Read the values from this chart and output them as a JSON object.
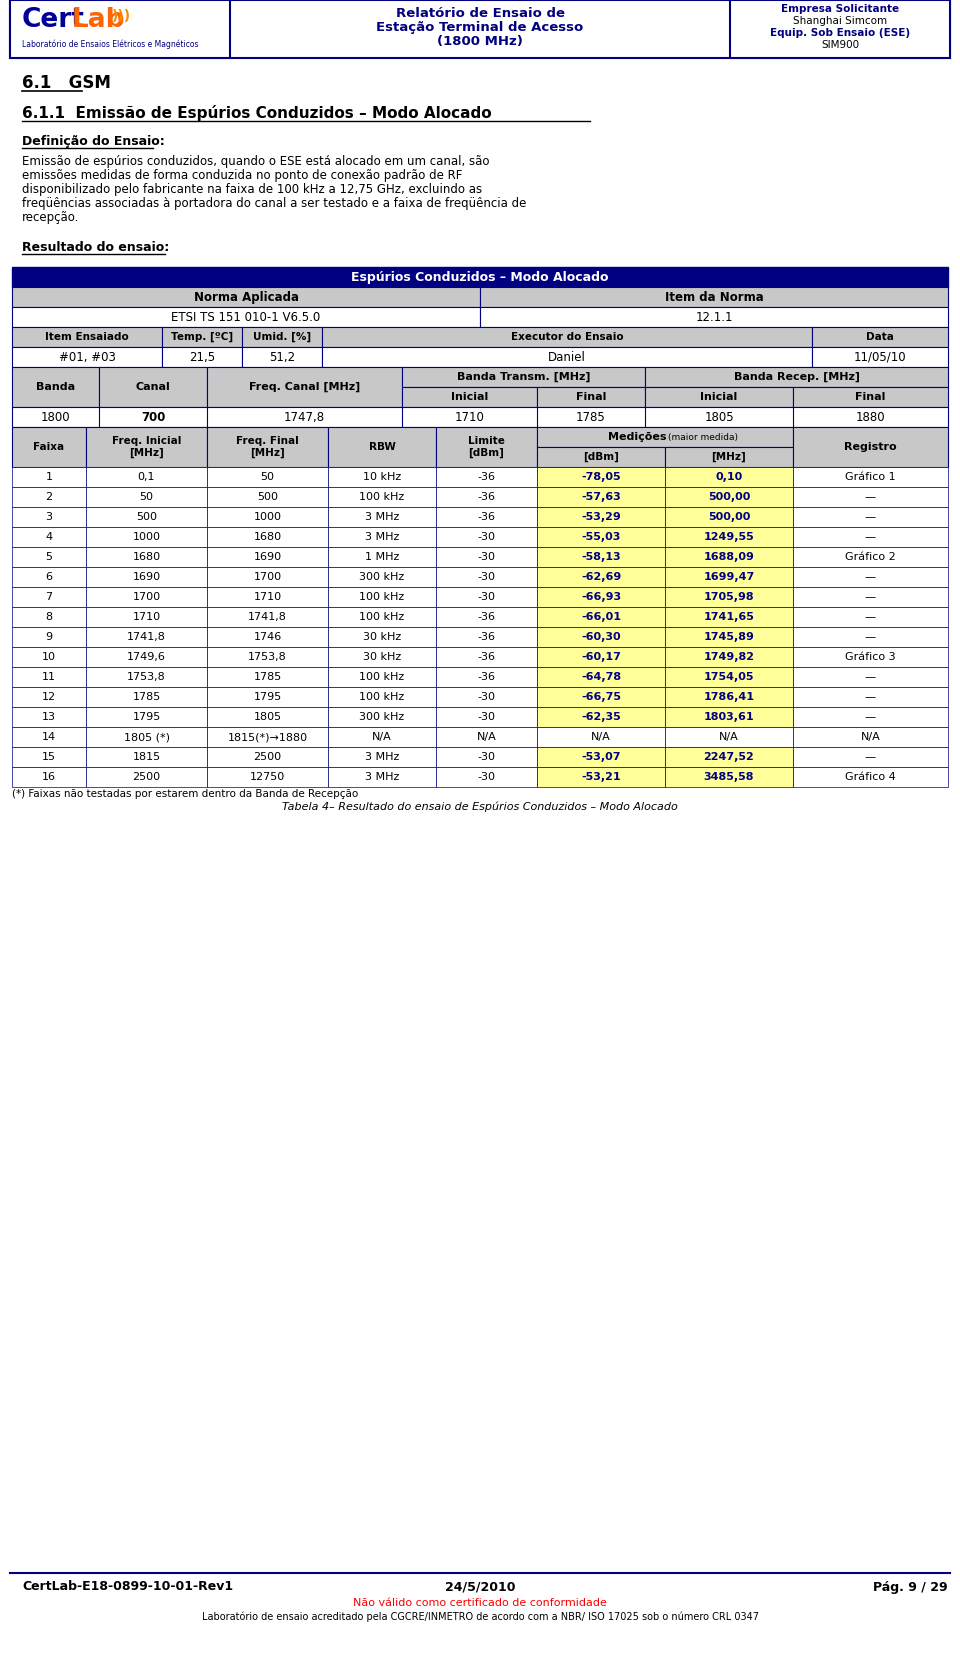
{
  "page_title_line1": "Relatório de Ensaio de",
  "page_title_line2": "Estação Terminal de Acesso",
  "page_title_line3": "(1800 MHz)",
  "company_label": "Empresa Solicitante",
  "company_name": "Shanghai Simcom",
  "equip_label": "Equip. Sob Ensaio (ESE)",
  "equip_name": "SIM900",
  "certlab_subtitle": "Laboratório de Ensaios Elétricos e Magnéticos",
  "section_title": "6.1   GSM",
  "subsection_title": "6.1.1  Emissão de Espúrios Conduzidos – Modo Alocado",
  "def_label": "Definição do Ensaio:",
  "def_lines": [
    "Emissão de espúrios conduzidos, quando o ESE está alocado em um canal, são",
    "emissões medidas de forma conduzida no ponto de conexão padrão de RF",
    "disponibilizado pelo fabricante na faixa de 100 kHz a 12,75 GHz, excluindo as",
    "freqüências associadas à portadora do canal a ser testado e a faixa de freqüência de",
    "recepção."
  ],
  "result_label": "Resultado do ensaio:",
  "table_title": "Espúrios Conduzidos – Modo Alocado",
  "norma_aplicada": "Norma Aplicada",
  "item_norma": "Item da Norma",
  "norma_value": "ETSI TS 151 010-1 V6.5.0",
  "item_norma_value": "12.1.1",
  "item_ensaiado_label": "Item Ensaiado",
  "temp_label": "Temp. [ºC]",
  "umid_label": "Umid. [%]",
  "executor_label": "Executor do Ensaio",
  "data_label": "Data",
  "item_ensaiado_value": "#01, #03",
  "temp_value": "21,5",
  "umid_value": "51,2",
  "executor_value": "Daniel",
  "data_value": "11/05/10",
  "banda_label": "Banda",
  "canal_label": "Canal",
  "freq_canal_label": "Freq. Canal [MHz]",
  "banda_transm_label": "Banda Transm. [MHz]",
  "banda_recep_label": "Banda Recep. [MHz]",
  "inicial_label": "Inicial",
  "final_label": "Final",
  "banda_value": "1800",
  "canal_value": "700",
  "freq_canal_value": "1747,8",
  "bt_inicial": "1710",
  "bt_final": "1785",
  "br_inicial": "1805",
  "br_final": "1880",
  "faixa_label": "Faixa",
  "freq_ini_label": "Freq. Inicial\n[MHz]",
  "freq_fin_label": "Freq. Final\n[MHz]",
  "rbw_label": "RBW",
  "limite_label": "Limite\n[dBm]",
  "medicoes_label": "Medições",
  "medicoes_sub": "(maior medida)",
  "dbm_label": "[dBm]",
  "mhz_label": "[MHz]",
  "registro_label": "Registro",
  "rows": [
    [
      "1",
      "0,1",
      "50",
      "10 kHz",
      "-36",
      "-78,05",
      "0,10",
      "Gráfico 1"
    ],
    [
      "2",
      "50",
      "500",
      "100 kHz",
      "-36",
      "-57,63",
      "500,00",
      "—"
    ],
    [
      "3",
      "500",
      "1000",
      "3 MHz",
      "-36",
      "-53,29",
      "500,00",
      "—"
    ],
    [
      "4",
      "1000",
      "1680",
      "3 MHz",
      "-30",
      "-55,03",
      "1249,55",
      "—"
    ],
    [
      "5",
      "1680",
      "1690",
      "1 MHz",
      "-30",
      "-58,13",
      "1688,09",
      "Gráfico 2"
    ],
    [
      "6",
      "1690",
      "1700",
      "300 kHz",
      "-30",
      "-62,69",
      "1699,47",
      "—"
    ],
    [
      "7",
      "1700",
      "1710",
      "100 kHz",
      "-30",
      "-66,93",
      "1705,98",
      "—"
    ],
    [
      "8",
      "1710",
      "1741,8",
      "100 kHz",
      "-36",
      "-66,01",
      "1741,65",
      "—"
    ],
    [
      "9",
      "1741,8",
      "1746",
      "30 kHz",
      "-36",
      "-60,30",
      "1745,89",
      "—"
    ],
    [
      "10",
      "1749,6",
      "1753,8",
      "30 kHz",
      "-36",
      "-60,17",
      "1749,82",
      "Gráfico 3"
    ],
    [
      "11",
      "1753,8",
      "1785",
      "100 kHz",
      "-36",
      "-64,78",
      "1754,05",
      "—"
    ],
    [
      "12",
      "1785",
      "1795",
      "100 kHz",
      "-30",
      "-66,75",
      "1786,41",
      "—"
    ],
    [
      "13",
      "1795",
      "1805",
      "300 kHz",
      "-30",
      "-62,35",
      "1803,61",
      "—"
    ],
    [
      "14",
      "1805 (*)",
      "1815(*)→1880",
      "N/A",
      "N/A",
      "N/A",
      "N/A",
      "N/A"
    ],
    [
      "15",
      "1815",
      "2500",
      "3 MHz",
      "-30",
      "-53,07",
      "2247,52",
      "—"
    ],
    [
      "16",
      "2500",
      "12750",
      "3 MHz",
      "-30",
      "-53,21",
      "3485,58",
      "Gráfico 4"
    ]
  ],
  "footnote": "(*) Faixas não testadas por estarem dentro da Banda de Recepção",
  "table_caption": "Tabela 4– Resultado do ensaio de Espúrios Conduzidos – Modo Alocado",
  "footer_left": "CertLab-E18-0899-10-01-Rev1",
  "footer_center": "24/5/2010",
  "footer_right": "Pág. 9 / 29",
  "footer_red": "Não válido como certificado de conformidade",
  "footer_bottom": "Laboratório de ensaio acreditado pela CGCRE/INMETRO de acordo com a NBR/ ISO 17025 sob o número CRL 0347",
  "navy": "#000080",
  "gray1": "#C8C8C8",
  "yellow": "#FFFF99",
  "white": "#FFFFFF"
}
